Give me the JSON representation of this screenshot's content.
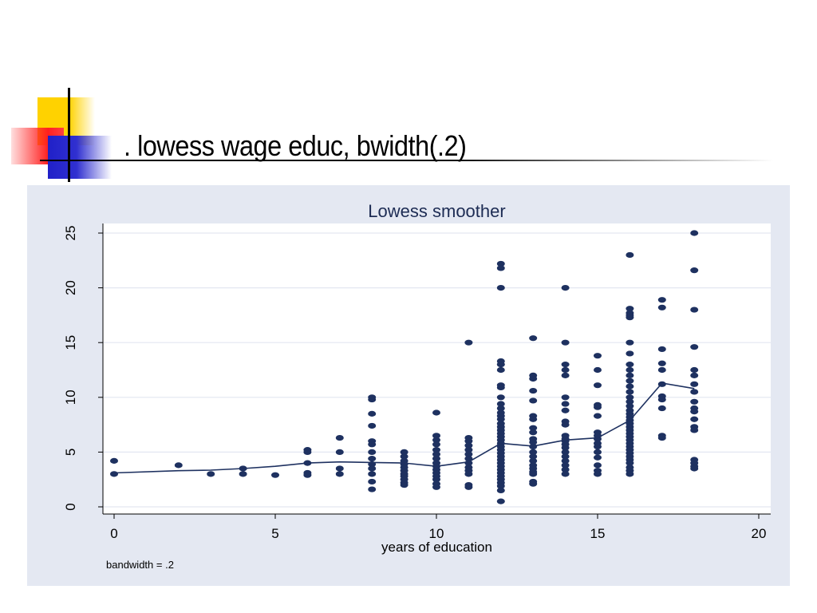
{
  "slide": {
    "title": ". lowess wage educ, bwidth(.2)"
  },
  "colors": {
    "panel_background": "#e4e8f2",
    "plot_background": "#ffffff",
    "marker": "#1e3160",
    "title_text": "#1d2c54"
  },
  "chart_data": {
    "type": "scatter",
    "title": "Lowess smoother",
    "xlabel": "years of education",
    "ylabel": "",
    "note": "bandwidth = .2",
    "xlim": [
      0,
      20
    ],
    "ylim": [
      0,
      25
    ],
    "xticks": [
      0,
      5,
      10,
      15,
      20
    ],
    "yticks": [
      0,
      5,
      10,
      15,
      20,
      25
    ],
    "grid": true,
    "points": [
      [
        0,
        4.2
      ],
      [
        0,
        3.0
      ],
      [
        2,
        3.8
      ],
      [
        3,
        3.0
      ],
      [
        4,
        3.5
      ],
      [
        4,
        3.0
      ],
      [
        5,
        2.9
      ],
      [
        6,
        5.2
      ],
      [
        6,
        5.0
      ],
      [
        6,
        4.0
      ],
      [
        6,
        3.1
      ],
      [
        6,
        2.9
      ],
      [
        7,
        6.3
      ],
      [
        7,
        5.0
      ],
      [
        7,
        3.5
      ],
      [
        7,
        3.0
      ],
      [
        8,
        10.0
      ],
      [
        8,
        9.8
      ],
      [
        8,
        8.5
      ],
      [
        8,
        7.4
      ],
      [
        8,
        6.0
      ],
      [
        8,
        5.7
      ],
      [
        8,
        5.0
      ],
      [
        8,
        4.4
      ],
      [
        8,
        3.9
      ],
      [
        8,
        3.5
      ],
      [
        8,
        3.0
      ],
      [
        8,
        2.3
      ],
      [
        8,
        1.6
      ],
      [
        9,
        5.0
      ],
      [
        9,
        4.6
      ],
      [
        9,
        4.2
      ],
      [
        9,
        3.9
      ],
      [
        9,
        3.6
      ],
      [
        9,
        3.3
      ],
      [
        9,
        3.0
      ],
      [
        9,
        2.8
      ],
      [
        9,
        2.5
      ],
      [
        9,
        2.2
      ],
      [
        9,
        2.0
      ],
      [
        10,
        8.6
      ],
      [
        10,
        6.5
      ],
      [
        10,
        6.1
      ],
      [
        10,
        5.7
      ],
      [
        10,
        5.2
      ],
      [
        10,
        4.8
      ],
      [
        10,
        4.4
      ],
      [
        10,
        4.0
      ],
      [
        10,
        3.7
      ],
      [
        10,
        3.4
      ],
      [
        10,
        3.1
      ],
      [
        10,
        2.8
      ],
      [
        10,
        2.5
      ],
      [
        10,
        2.1
      ],
      [
        10,
        1.8
      ],
      [
        11,
        15.0
      ],
      [
        11,
        6.3
      ],
      [
        11,
        6.0
      ],
      [
        11,
        5.6
      ],
      [
        11,
        5.2
      ],
      [
        11,
        4.8
      ],
      [
        11,
        4.4
      ],
      [
        11,
        4.0
      ],
      [
        11,
        3.6
      ],
      [
        11,
        3.3
      ],
      [
        11,
        3.0
      ],
      [
        11,
        2.0
      ],
      [
        11,
        1.8
      ],
      [
        12,
        22.2
      ],
      [
        12,
        21.8
      ],
      [
        12,
        20.0
      ],
      [
        12,
        13.3
      ],
      [
        12,
        13.0
      ],
      [
        12,
        12.5
      ],
      [
        12,
        11.1
      ],
      [
        12,
        10.9
      ],
      [
        12,
        10.0
      ],
      [
        12,
        9.4
      ],
      [
        12,
        9.0
      ],
      [
        12,
        8.6
      ],
      [
        12,
        8.3
      ],
      [
        12,
        8.0
      ],
      [
        12,
        7.6
      ],
      [
        12,
        7.3
      ],
      [
        12,
        7.0
      ],
      [
        12,
        6.7
      ],
      [
        12,
        6.4
      ],
      [
        12,
        6.1
      ],
      [
        12,
        5.8
      ],
      [
        12,
        5.5
      ],
      [
        12,
        5.2
      ],
      [
        12,
        4.9
      ],
      [
        12,
        4.6
      ],
      [
        12,
        4.3
      ],
      [
        12,
        4.0
      ],
      [
        12,
        3.7
      ],
      [
        12,
        3.4
      ],
      [
        12,
        3.1
      ],
      [
        12,
        2.8
      ],
      [
        12,
        2.5
      ],
      [
        12,
        2.2
      ],
      [
        12,
        1.9
      ],
      [
        12,
        1.5
      ],
      [
        12,
        0.5
      ],
      [
        13,
        15.4
      ],
      [
        13,
        12.0
      ],
      [
        13,
        11.7
      ],
      [
        13,
        10.6
      ],
      [
        13,
        9.7
      ],
      [
        13,
        8.3
      ],
      [
        13,
        8.0
      ],
      [
        13,
        7.2
      ],
      [
        13,
        6.8
      ],
      [
        13,
        6.2
      ],
      [
        13,
        5.9
      ],
      [
        13,
        5.5
      ],
      [
        13,
        5.0
      ],
      [
        13,
        4.6
      ],
      [
        13,
        4.2
      ],
      [
        13,
        3.8
      ],
      [
        13,
        3.5
      ],
      [
        13,
        3.2
      ],
      [
        13,
        3.0
      ],
      [
        13,
        2.3
      ],
      [
        13,
        2.1
      ],
      [
        14,
        20.0
      ],
      [
        14,
        15.0
      ],
      [
        14,
        13.0
      ],
      [
        14,
        12.5
      ],
      [
        14,
        12.0
      ],
      [
        14,
        10.0
      ],
      [
        14,
        9.4
      ],
      [
        14,
        8.8
      ],
      [
        14,
        7.8
      ],
      [
        14,
        7.5
      ],
      [
        14,
        6.5
      ],
      [
        14,
        6.2
      ],
      [
        14,
        6.0
      ],
      [
        14,
        5.7
      ],
      [
        14,
        5.4
      ],
      [
        14,
        5.0
      ],
      [
        14,
        4.6
      ],
      [
        14,
        4.2
      ],
      [
        14,
        3.8
      ],
      [
        14,
        3.4
      ],
      [
        14,
        3.0
      ],
      [
        15,
        13.8
      ],
      [
        15,
        12.5
      ],
      [
        15,
        11.1
      ],
      [
        15,
        9.3
      ],
      [
        15,
        9.1
      ],
      [
        15,
        8.3
      ],
      [
        15,
        6.8
      ],
      [
        15,
        6.5
      ],
      [
        15,
        6.2
      ],
      [
        15,
        5.8
      ],
      [
        15,
        5.5
      ],
      [
        15,
        5.0
      ],
      [
        15,
        4.5
      ],
      [
        15,
        3.8
      ],
      [
        15,
        3.3
      ],
      [
        15,
        3.0
      ],
      [
        16,
        23.0
      ],
      [
        16,
        18.1
      ],
      [
        16,
        17.7
      ],
      [
        16,
        17.5
      ],
      [
        16,
        17.3
      ],
      [
        16,
        15.0
      ],
      [
        16,
        14.0
      ],
      [
        16,
        13.0
      ],
      [
        16,
        12.5
      ],
      [
        16,
        12.0
      ],
      [
        16,
        11.5
      ],
      [
        16,
        11.0
      ],
      [
        16,
        10.5
      ],
      [
        16,
        10.0
      ],
      [
        16,
        9.6
      ],
      [
        16,
        9.2
      ],
      [
        16,
        8.8
      ],
      [
        16,
        8.5
      ],
      [
        16,
        8.2
      ],
      [
        16,
        7.9
      ],
      [
        16,
        7.6
      ],
      [
        16,
        7.3
      ],
      [
        16,
        7.0
      ],
      [
        16,
        6.7
      ],
      [
        16,
        6.4
      ],
      [
        16,
        6.1
      ],
      [
        16,
        5.8
      ],
      [
        16,
        5.5
      ],
      [
        16,
        5.2
      ],
      [
        16,
        4.9
      ],
      [
        16,
        4.6
      ],
      [
        16,
        4.3
      ],
      [
        16,
        4.0
      ],
      [
        16,
        3.6
      ],
      [
        16,
        3.3
      ],
      [
        16,
        3.0
      ],
      [
        17,
        18.9
      ],
      [
        17,
        18.2
      ],
      [
        17,
        14.4
      ],
      [
        17,
        13.1
      ],
      [
        17,
        12.5
      ],
      [
        17,
        11.2
      ],
      [
        17,
        10.1
      ],
      [
        17,
        9.8
      ],
      [
        17,
        9.0
      ],
      [
        17,
        6.5
      ],
      [
        17,
        6.3
      ],
      [
        18,
        25.0
      ],
      [
        18,
        21.6
      ],
      [
        18,
        18.0
      ],
      [
        18,
        14.6
      ],
      [
        18,
        12.5
      ],
      [
        18,
        12.0
      ],
      [
        18,
        11.2
      ],
      [
        18,
        10.5
      ],
      [
        18,
        9.6
      ],
      [
        18,
        9.0
      ],
      [
        18,
        8.7
      ],
      [
        18,
        8.0
      ],
      [
        18,
        7.3
      ],
      [
        18,
        7.0
      ],
      [
        18,
        4.3
      ],
      [
        18,
        4.0
      ],
      [
        18,
        3.7
      ],
      [
        18,
        3.5
      ]
    ],
    "smoother": [
      [
        0,
        3.1
      ],
      [
        2,
        3.3
      ],
      [
        3,
        3.35
      ],
      [
        4,
        3.5
      ],
      [
        5,
        3.7
      ],
      [
        6,
        4.0
      ],
      [
        7,
        4.1
      ],
      [
        8,
        4.05
      ],
      [
        9,
        4.0
      ],
      [
        10,
        3.7
      ],
      [
        11,
        4.1
      ],
      [
        12,
        5.8
      ],
      [
        13,
        5.55
      ],
      [
        14,
        6.1
      ],
      [
        15,
        6.3
      ],
      [
        16,
        7.9
      ],
      [
        17,
        11.3
      ],
      [
        18,
        10.8
      ]
    ]
  }
}
